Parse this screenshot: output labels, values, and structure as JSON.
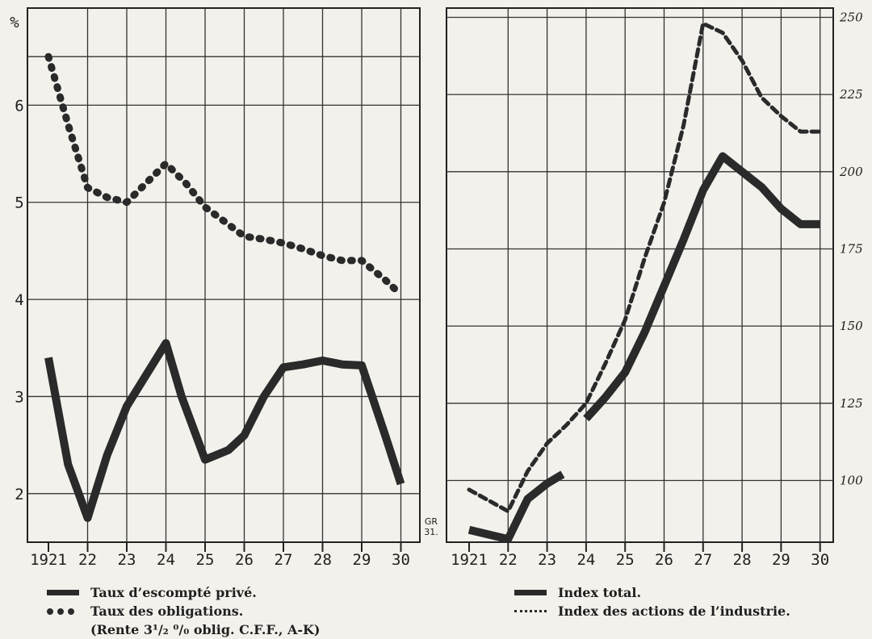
{
  "chart_data": [
    {
      "type": "line",
      "ylabel": "%",
      "x": [
        "1921",
        "22",
        "23",
        "24",
        "25",
        "26",
        "27",
        "28",
        "29",
        "30"
      ],
      "ylim": [
        1.5,
        7.0
      ],
      "yticks": [
        "2",
        "3",
        "4",
        "5",
        "6"
      ],
      "series": [
        {
          "name": "Taux d’escompté privé.",
          "style": "solid",
          "points": [
            [
              1921,
              3.4
            ],
            [
              1921.5,
              2.3
            ],
            [
              1922,
              1.75
            ],
            [
              1922.5,
              2.4
            ],
            [
              1923,
              2.9
            ],
            [
              1924,
              3.55
            ],
            [
              1924.4,
              3.0
            ],
            [
              1925,
              2.35
            ],
            [
              1925.6,
              2.45
            ],
            [
              1926,
              2.6
            ],
            [
              1926.5,
              3.0
            ],
            [
              1927,
              3.3
            ],
            [
              1927.5,
              3.33
            ],
            [
              1928,
              3.37
            ],
            [
              1928.5,
              3.33
            ],
            [
              1929,
              3.32
            ],
            [
              1929.6,
              2.6
            ],
            [
              1930,
              2.1
            ]
          ]
        },
        {
          "name": "Taux des obligations.",
          "style": "dotted",
          "points": [
            [
              1921,
              6.5
            ],
            [
              1921.5,
              5.8
            ],
            [
              1922,
              5.15
            ],
            [
              1922.5,
              5.05
            ],
            [
              1923,
              5.0
            ],
            [
              1923.5,
              5.2
            ],
            [
              1924,
              5.4
            ],
            [
              1924.5,
              5.2
            ],
            [
              1925,
              4.95
            ],
            [
              1925.5,
              4.8
            ],
            [
              1926,
              4.65
            ],
            [
              1926.5,
              4.62
            ],
            [
              1927,
              4.58
            ],
            [
              1927.5,
              4.52
            ],
            [
              1928,
              4.45
            ],
            [
              1928.5,
              4.4
            ],
            [
              1929,
              4.4
            ],
            [
              1929.6,
              4.2
            ],
            [
              1930,
              4.05
            ]
          ]
        }
      ],
      "legend_note": "(Rente 3¹/₂ ⁰/₀ oblig. C.F.F., A-K)"
    },
    {
      "type": "line",
      "x": [
        "1921",
        "22",
        "23",
        "24",
        "25",
        "26",
        "27",
        "28",
        "29",
        "30"
      ],
      "ylim": [
        80,
        253
      ],
      "yticks": [
        "100",
        "125",
        "150",
        "175",
        "200",
        "225",
        "250"
      ],
      "annotation": "GR 31.",
      "series": [
        {
          "name": "Index total.",
          "style": "solid",
          "segments": [
            [
              [
                1921,
                84
              ],
              [
                1922,
                81
              ],
              [
                1922.5,
                94
              ],
              [
                1923,
                99
              ],
              [
                1923.4,
                102
              ]
            ],
            [
              [
                1924,
                120
              ],
              [
                1924.5,
                127
              ],
              [
                1925,
                135
              ],
              [
                1925.5,
                148
              ],
              [
                1926,
                163
              ],
              [
                1926.5,
                178
              ],
              [
                1927,
                194
              ],
              [
                1927.5,
                205
              ],
              [
                1928,
                200
              ],
              [
                1928.5,
                195
              ],
              [
                1929,
                188
              ],
              [
                1929.5,
                183
              ],
              [
                1930,
                183
              ]
            ]
          ]
        },
        {
          "name": "Index des actions de l’industrie.",
          "style": "dotted",
          "segments": [
            [
              [
                1921,
                97
              ],
              [
                1922,
                90
              ],
              [
                1922.5,
                103
              ],
              [
                1923,
                112
              ],
              [
                1923.5,
                118
              ],
              [
                1924,
                125
              ],
              [
                1924.5,
                138
              ],
              [
                1925,
                152
              ],
              [
                1925.5,
                172
              ],
              [
                1926,
                190
              ],
              [
                1926.5,
                215
              ],
              [
                1927,
                248
              ],
              [
                1927.5,
                245
              ],
              [
                1928,
                236
              ],
              [
                1928.5,
                224
              ],
              [
                1929,
                218
              ],
              [
                1929.5,
                213
              ],
              [
                1930,
                213
              ]
            ]
          ]
        }
      ]
    }
  ],
  "legend_left": {
    "items": [
      "Taux d’escompté privé.",
      "Taux des obligations."
    ],
    "note": "(Rente 3¹/₂ ⁰/₀ oblig. C.F.F., A-K)"
  },
  "legend_right": {
    "items": [
      "Index total.",
      "Index des actions de l’industrie."
    ]
  }
}
